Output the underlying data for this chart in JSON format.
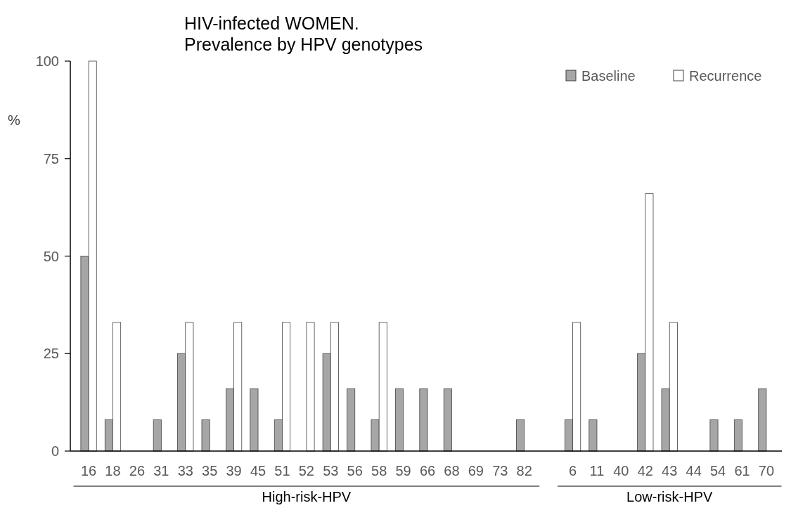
{
  "chart_data": {
    "type": "bar",
    "title": "HIV-infected WOMEN.\nPrevalence by HPV genotypes",
    "ylabel": "%",
    "categories": [
      "16",
      "18",
      "26",
      "31",
      "33",
      "35",
      "39",
      "45",
      "51",
      "52",
      "53",
      "56",
      "58",
      "59",
      "66",
      "68",
      "69",
      "73",
      "82",
      null,
      "6",
      "11",
      "40",
      "42",
      "43",
      "44",
      "54",
      "61",
      "70"
    ],
    "series": [
      {
        "name": "Baseline",
        "color": "#a6a6a6",
        "values": [
          50,
          8,
          0,
          8,
          25,
          8,
          16,
          16,
          8,
          0,
          25,
          16,
          8,
          16,
          16,
          16,
          0,
          0,
          8,
          null,
          8,
          8,
          0,
          25,
          16,
          0,
          8,
          8,
          16
        ]
      },
      {
        "name": "Recurrence",
        "color": "#ffffff",
        "values": [
          100,
          33,
          0,
          0,
          33,
          0,
          33,
          0,
          33,
          33,
          33,
          0,
          33,
          0,
          0,
          0,
          0,
          0,
          0,
          null,
          33,
          0,
          0,
          66,
          33,
          0,
          0,
          0,
          0
        ]
      }
    ],
    "ylim": [
      0,
      100
    ],
    "yticks": [
      0,
      25,
      50,
      75,
      100
    ],
    "legend": "top right",
    "annotations": [
      "High-risk-HPV",
      "Low-risk-HPV"
    ]
  }
}
